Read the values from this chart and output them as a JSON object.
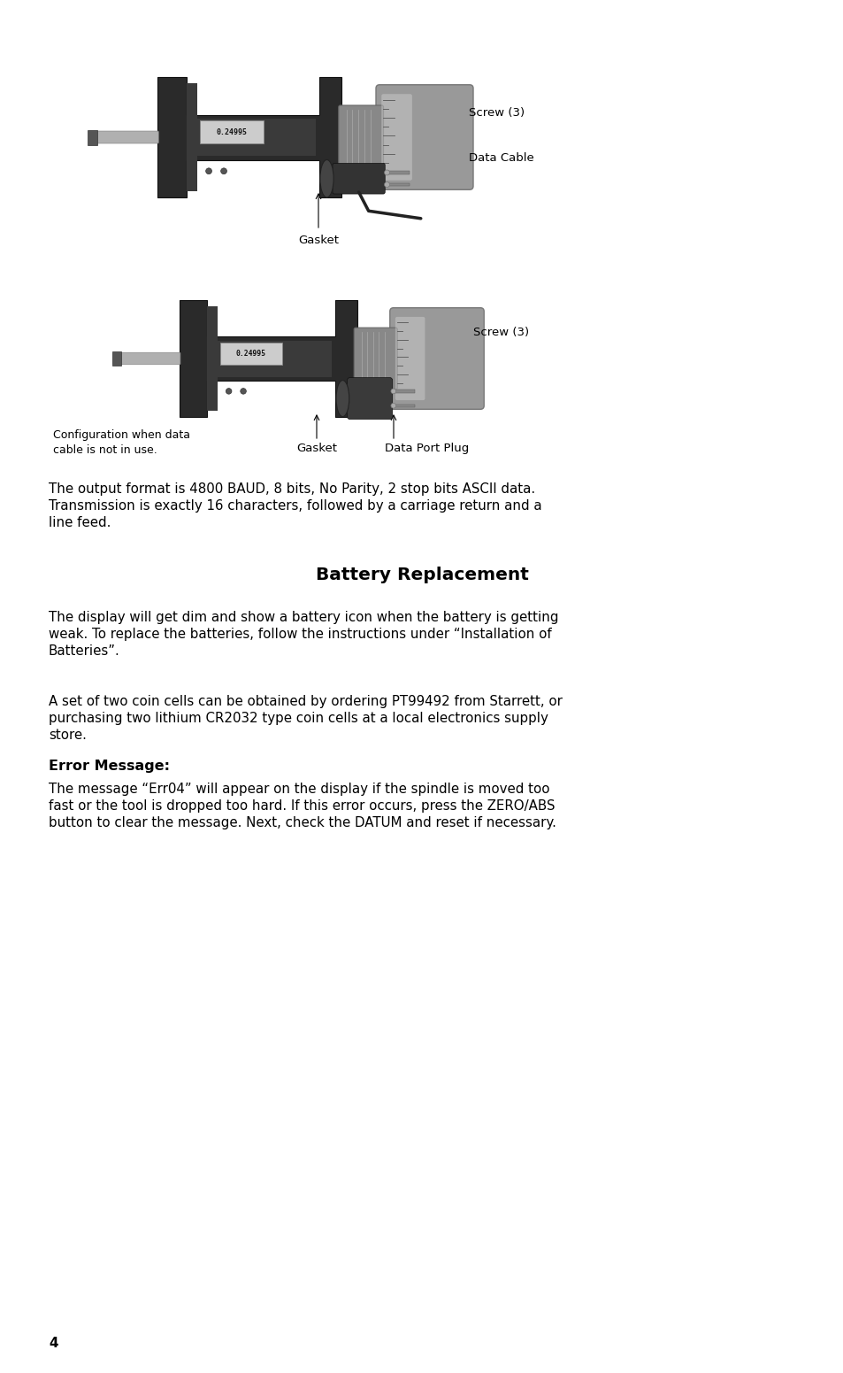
{
  "background_color": "#ffffff",
  "text_color": "#000000",
  "page_number": "4",
  "body_fontsize": 10.8,
  "title_fontsize": 14.5,
  "label_fontsize": 9.5,
  "section_heading_fontsize": 11.5,
  "section_title": "Battery Replacement",
  "error_heading": "Error Message:",
  "para1_lines": [
    "The output format is 4800 BAUD, 8 bits, No Parity, 2 stop bits ASCII data.",
    "Transmission is exactly 16 characters, followed by a carriage return and a",
    "line feed."
  ],
  "para2_lines": [
    "The display will get dim and show a battery icon when the battery is getting",
    "weak. To replace the batteries, follow the instructions under “Installation of",
    "Batteries”."
  ],
  "para3_lines": [
    "A set of two coin cells can be obtained by ordering PT99492 from Starrett, or",
    "purchasing two lithium CR2032 type coin cells at a local electronics supply",
    "store."
  ],
  "para4_lines": [
    "The message “Err04” will appear on the display if the spindle is moved too",
    "fast or the tool is dropped too hard. If this error occurs, press the ZERO/ABS",
    "button to clear the message. Next, check the DATUM and reset if necessary."
  ]
}
